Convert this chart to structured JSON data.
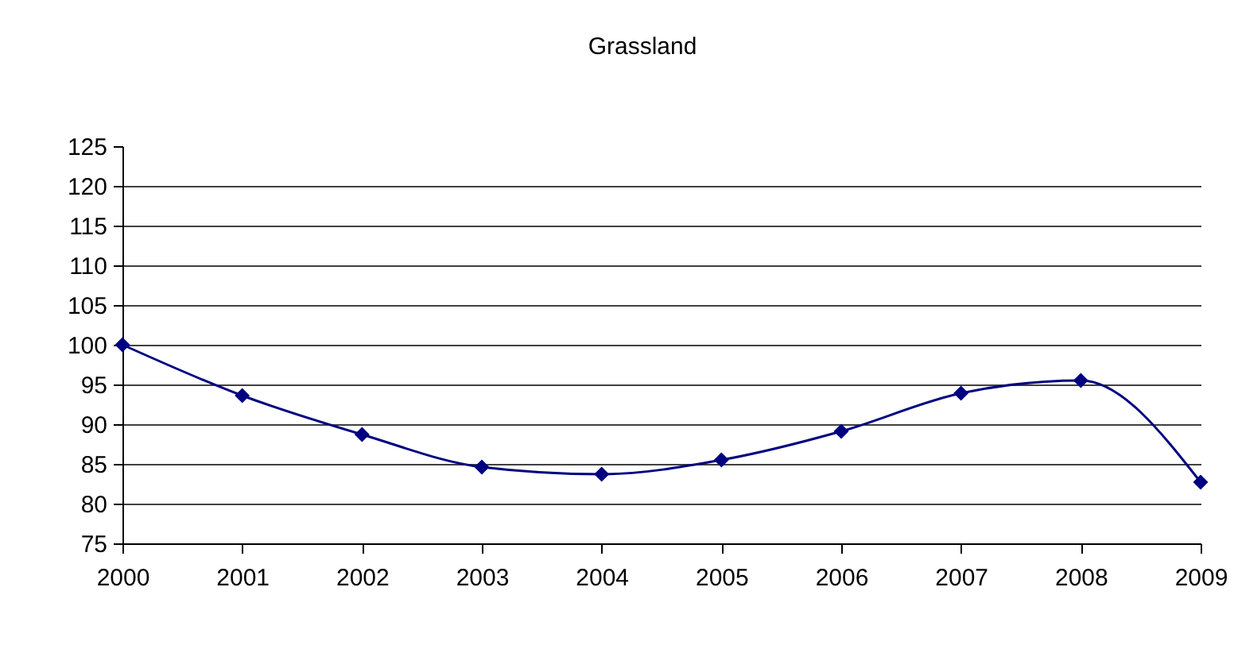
{
  "chart_data": {
    "type": "line",
    "title": "Grassland",
    "categories": [
      "2000",
      "2001",
      "2002",
      "2003",
      "2004",
      "2005",
      "2006",
      "2007",
      "2008",
      "2009"
    ],
    "series": [
      {
        "color": "#000080",
        "values": [
          100,
          93.6,
          88.7,
          84.6,
          83.7,
          85.5,
          89.1,
          93.9,
          95.5,
          82.7
        ]
      }
    ],
    "ylim": [
      75,
      125
    ],
    "yticks": [
      75,
      80,
      85,
      90,
      95,
      100,
      105,
      110,
      115,
      120,
      125
    ],
    "grid": "y",
    "marker": "diamond",
    "line_style": "solid"
  }
}
